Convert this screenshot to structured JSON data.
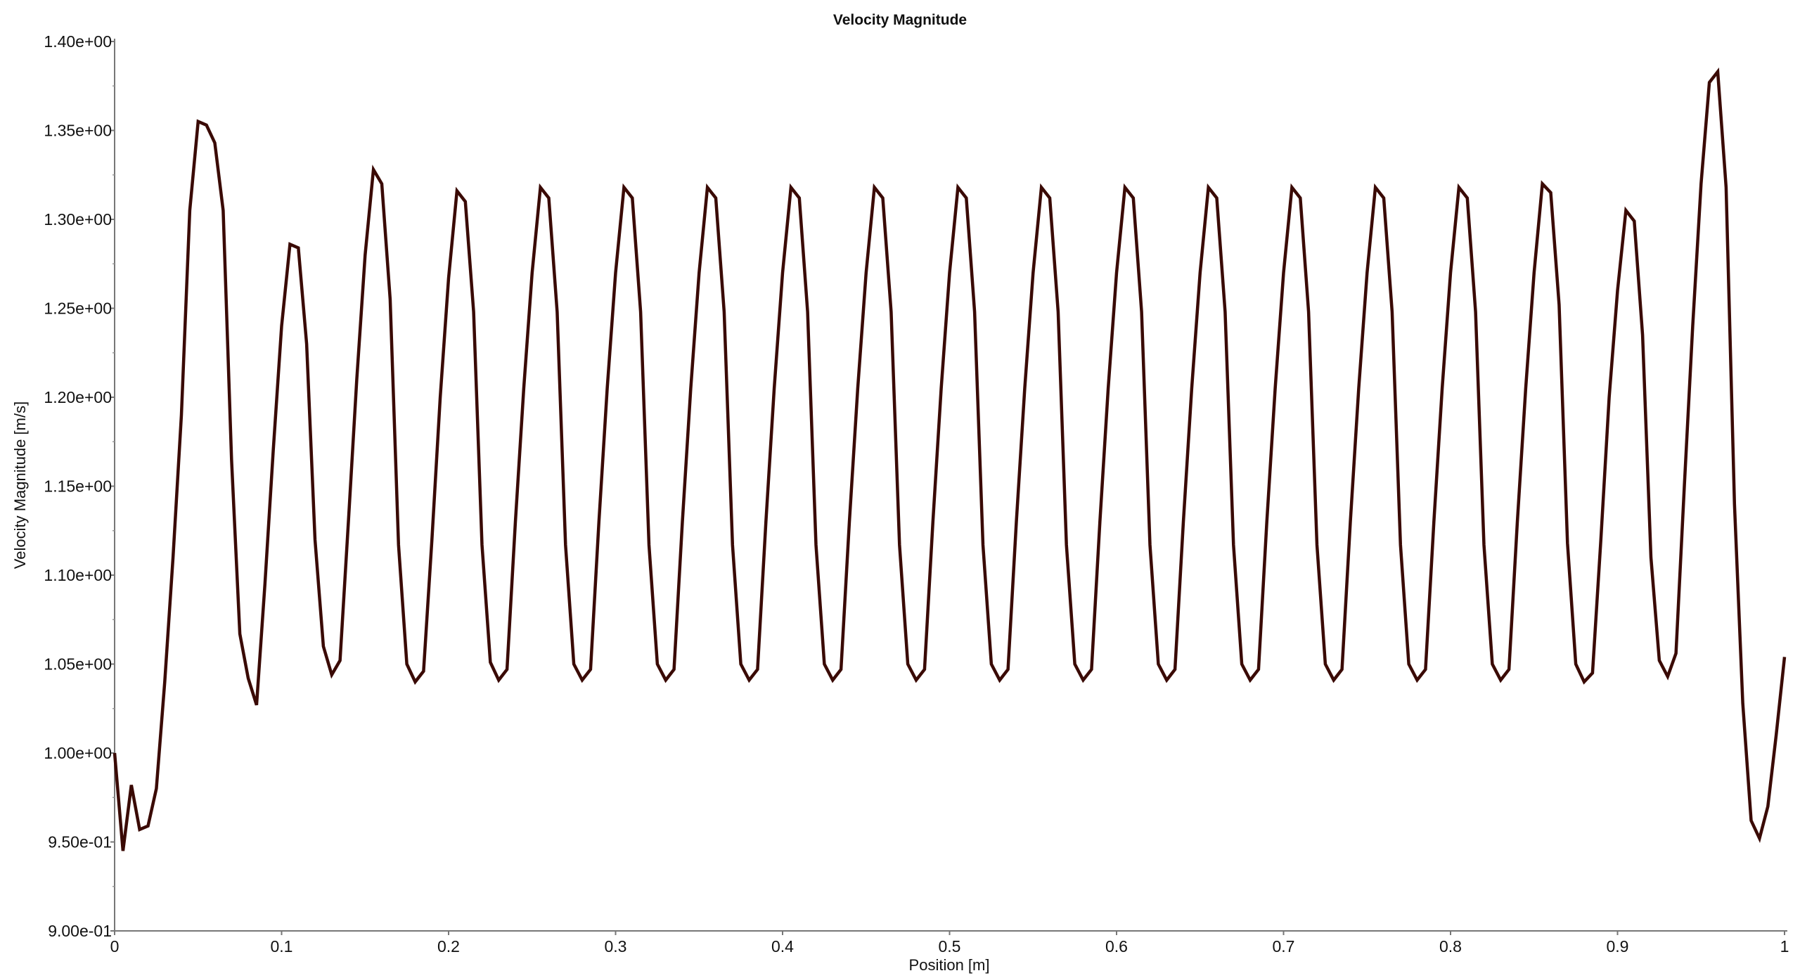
{
  "chart_data": {
    "type": "line",
    "title": "Velocity Magnitude",
    "xlabel": "Position [m]",
    "ylabel": "Velocity Magnitude [m/s]",
    "xlim": [
      0,
      1
    ],
    "ylim": [
      0.9,
      1.4
    ],
    "grid": false,
    "line_color": "#3a0a05",
    "x_ticks": [
      0,
      0.1,
      0.2,
      0.3,
      0.4,
      0.5,
      0.6,
      0.7,
      0.8,
      0.9,
      1
    ],
    "x_tick_labels": [
      "0",
      "0.1",
      "0.2",
      "0.3",
      "0.4",
      "0.5",
      "0.6",
      "0.7",
      "0.8",
      "0.9",
      "1"
    ],
    "y_ticks": [
      0.9,
      0.95,
      1.0,
      1.05,
      1.1,
      1.15,
      1.2,
      1.25,
      1.3,
      1.35,
      1.4
    ],
    "y_tick_labels": [
      "9.00e-01",
      "9.50e-01",
      "1.00e+00",
      "1.05e+00",
      "1.10e+00",
      "1.15e+00",
      "1.20e+00",
      "1.25e+00",
      "1.30e+00",
      "1.35e+00",
      "1.40e+00"
    ],
    "x": [
      0,
      0.005,
      0.01,
      0.015,
      0.02,
      0.025,
      0.03,
      0.035,
      0.04,
      0.045,
      0.05,
      0.055,
      0.06,
      0.065,
      0.07,
      0.075,
      0.08,
      0.085,
      0.09,
      0.095,
      0.1,
      0.105,
      0.11,
      0.115,
      0.12,
      0.125,
      0.13,
      0.135,
      0.14,
      0.145,
      0.15,
      0.155,
      0.16,
      0.165,
      0.17,
      0.175,
      0.18,
      0.185,
      0.19,
      0.195,
      0.2,
      0.205,
      0.21,
      0.215,
      0.22,
      0.225,
      0.23,
      0.235,
      0.24,
      0.245,
      0.25,
      0.255,
      0.26,
      0.265,
      0.27,
      0.275,
      0.28,
      0.285,
      0.29,
      0.295,
      0.3,
      0.305,
      0.31,
      0.315,
      0.32,
      0.325,
      0.33,
      0.335,
      0.34,
      0.345,
      0.35,
      0.355,
      0.36,
      0.365,
      0.37,
      0.375,
      0.38,
      0.385,
      0.39,
      0.395,
      0.4,
      0.405,
      0.41,
      0.415,
      0.42,
      0.425,
      0.43,
      0.435,
      0.44,
      0.445,
      0.45,
      0.455,
      0.46,
      0.465,
      0.47,
      0.475,
      0.48,
      0.485,
      0.49,
      0.495,
      0.5,
      0.505,
      0.51,
      0.515,
      0.52,
      0.525,
      0.53,
      0.535,
      0.54,
      0.545,
      0.55,
      0.555,
      0.56,
      0.565,
      0.57,
      0.575,
      0.58,
      0.585,
      0.59,
      0.595,
      0.6,
      0.605,
      0.61,
      0.615,
      0.62,
      0.625,
      0.63,
      0.635,
      0.64,
      0.645,
      0.65,
      0.655,
      0.66,
      0.665,
      0.67,
      0.675,
      0.68,
      0.685,
      0.69,
      0.695,
      0.7,
      0.705,
      0.71,
      0.715,
      0.72,
      0.725,
      0.73,
      0.735,
      0.74,
      0.745,
      0.75,
      0.755,
      0.76,
      0.765,
      0.77,
      0.775,
      0.78,
      0.785,
      0.79,
      0.795,
      0.8,
      0.805,
      0.81,
      0.815,
      0.82,
      0.825,
      0.83,
      0.835,
      0.84,
      0.845,
      0.85,
      0.855,
      0.86,
      0.865,
      0.87,
      0.875,
      0.88,
      0.885,
      0.89,
      0.895,
      0.9,
      0.905,
      0.91,
      0.915,
      0.92,
      0.925,
      0.93,
      0.935,
      0.94,
      0.945,
      0.95,
      0.955,
      0.96,
      0.965,
      0.97,
      0.975,
      0.98,
      0.985,
      0.99,
      0.995,
      1.0
    ],
    "y": [
      1.0,
      0.945,
      0.982,
      0.957,
      0.959,
      0.98,
      1.04,
      1.11,
      1.19,
      1.305,
      1.355,
      1.353,
      1.343,
      1.305,
      1.165,
      1.067,
      1.042,
      1.027,
      1.095,
      1.17,
      1.24,
      1.286,
      1.284,
      1.23,
      1.12,
      1.06,
      1.044,
      1.052,
      1.13,
      1.21,
      1.28,
      1.328,
      1.32,
      1.255,
      1.117,
      1.05,
      1.04,
      1.046,
      1.12,
      1.2,
      1.267,
      1.316,
      1.31,
      1.248,
      1.117,
      1.051,
      1.041,
      1.047,
      1.13,
      1.205,
      1.27,
      1.318,
      1.312,
      1.248,
      1.117,
      1.05,
      1.041,
      1.047,
      1.13,
      1.205,
      1.27,
      1.318,
      1.312,
      1.248,
      1.117,
      1.05,
      1.041,
      1.047,
      1.13,
      1.205,
      1.27,
      1.318,
      1.312,
      1.248,
      1.117,
      1.05,
      1.041,
      1.047,
      1.13,
      1.205,
      1.27,
      1.318,
      1.312,
      1.248,
      1.117,
      1.05,
      1.041,
      1.047,
      1.13,
      1.205,
      1.27,
      1.318,
      1.312,
      1.248,
      1.117,
      1.05,
      1.041,
      1.047,
      1.13,
      1.205,
      1.27,
      1.318,
      1.312,
      1.248,
      1.117,
      1.05,
      1.041,
      1.047,
      1.13,
      1.205,
      1.27,
      1.318,
      1.312,
      1.248,
      1.117,
      1.05,
      1.041,
      1.047,
      1.13,
      1.205,
      1.27,
      1.318,
      1.312,
      1.248,
      1.117,
      1.05,
      1.041,
      1.047,
      1.13,
      1.205,
      1.27,
      1.318,
      1.312,
      1.248,
      1.117,
      1.05,
      1.041,
      1.047,
      1.13,
      1.205,
      1.27,
      1.318,
      1.312,
      1.248,
      1.117,
      1.05,
      1.041,
      1.047,
      1.13,
      1.205,
      1.27,
      1.318,
      1.312,
      1.248,
      1.117,
      1.05,
      1.041,
      1.047,
      1.13,
      1.205,
      1.27,
      1.318,
      1.312,
      1.248,
      1.117,
      1.05,
      1.041,
      1.047,
      1.13,
      1.205,
      1.27,
      1.32,
      1.315,
      1.252,
      1.118,
      1.05,
      1.04,
      1.045,
      1.12,
      1.2,
      1.26,
      1.305,
      1.299,
      1.235,
      1.11,
      1.052,
      1.043,
      1.056,
      1.15,
      1.24,
      1.32,
      1.377,
      1.383,
      1.318,
      1.14,
      1.028,
      0.962,
      0.952,
      0.97,
      1.01,
      1.054
    ]
  }
}
